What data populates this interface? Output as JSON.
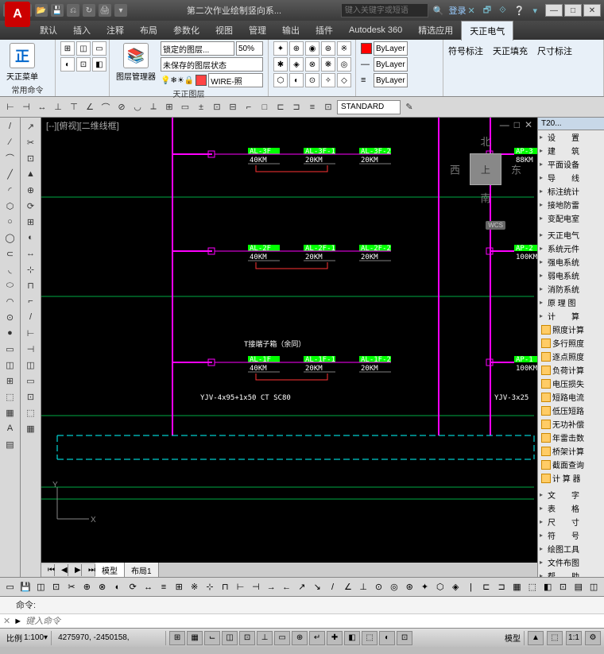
{
  "title": {
    "filename": "第二次作业绘制竖向系...",
    "search_placeholder": "键入关键字或短语",
    "login": "登录"
  },
  "qat": [
    "☰",
    "📄",
    "📂",
    "💾",
    "⎌",
    "↻",
    "🖨",
    "▾"
  ],
  "winbtns": [
    "—",
    "□",
    "✕"
  ],
  "help_icons": [
    "✕",
    "🗗",
    "⟐",
    "❔",
    "▾"
  ],
  "menus": [
    "默认",
    "插入",
    "注释",
    "布局",
    "参数化",
    "视图",
    "管理",
    "输出",
    "插件",
    "Autodesk 360",
    "精选应用",
    "天正电气"
  ],
  "active_menu": 11,
  "ribbon": {
    "panel1": {
      "main": "天正菜单",
      "label": "常用命令",
      "icon": "正"
    },
    "panel2": {
      "main": "图层管理器",
      "combo1": "锁定的图层...",
      "combo2": "50%",
      "state": "未保存的图层状态",
      "wire": "WIRE-照",
      "label": "天正图层"
    },
    "panel3_rows": 3,
    "panel4": {
      "bylayer": "ByLayer",
      "combo2": "ByLayer",
      "combo3": "ByLayer"
    },
    "panel5": [
      "符号标注",
      "天正填充",
      "尺寸标注"
    ]
  },
  "htool": {
    "style": "STANDARD"
  },
  "canvas": {
    "view_label": "[--][俯视][二维线框]",
    "compass": {
      "n": "北",
      "s": "南",
      "e": "东",
      "w": "西",
      "face": "上"
    },
    "wcs_badge": "WCS",
    "floors": [
      {
        "main": "AL-3F",
        "main_v": "40KM",
        "b": "AL-3F-1",
        "bv": "20KM",
        "c": "AL-3F-2",
        "cv": "20KM",
        "right": "AP-3",
        "rv": "88KM"
      },
      {
        "main": "AL-2F",
        "main_v": "40KM",
        "b": "AL-2F-1",
        "bv": "20KM",
        "c": "AL-2F-2",
        "cv": "20KM",
        "right": "AP-2",
        "rv": "100KM"
      },
      {
        "main": "AL-1F",
        "main_v": "40KM",
        "b": "AL-1F-1",
        "bv": "20KM",
        "c": "AL-1F-2",
        "cv": "20KM",
        "right": "AP-1",
        "rv": "100KM",
        "note": "T接端子箱（余同）"
      }
    ],
    "cable1": "YJV-4x95+1x50 CT SC80",
    "cable2": "YJV-3x25",
    "axes": {
      "x": "X",
      "y": "Y"
    },
    "tabs": [
      "模型",
      "布局1"
    ],
    "colors": {
      "riser": "#f0f",
      "green": "#0f0",
      "cyan": "#0ff",
      "grid": "#0a4",
      "red": "#f33"
    }
  },
  "side": {
    "header": "T20...",
    "groups1": [
      "设　　置",
      "建　　筑",
      "平面设备",
      "导　　线",
      "标注统计",
      "接地防雷",
      "变配电室"
    ],
    "groups2": [
      "天正电气",
      "系统元件",
      "强电系统",
      "弱电系统",
      "消防系统",
      "原 理 图",
      "计　　算"
    ],
    "calcs": [
      "照度计算",
      "多行照度",
      "逐点照度",
      "负荷计算",
      "电压损失",
      "短路电流",
      "低压短路",
      "无功补偿",
      "年雷击数",
      "桥架计算"
    ],
    "groups3": [
      "截面查询",
      "计 算 器"
    ],
    "groups4": [
      "文　　字",
      "表　　格",
      "尺　　寸",
      "符　　号",
      "绘图工具",
      "文件布图",
      "帮　　助"
    ]
  },
  "cmd": {
    "history": "命令:",
    "prompt": "►",
    "placeholder": "键入命令"
  },
  "status": {
    "scale_label": "比例",
    "scale": "1:100",
    "coords": "4275970, -2450158, ",
    "btns": [
      "⊞",
      "▦",
      "⌙",
      "◫",
      "⊡",
      "⊥",
      "▭",
      "⊕",
      "↵",
      "✚",
      "◧",
      "⬚",
      "◐",
      "⊡"
    ],
    "model": "模型",
    "annot": "▲",
    "space": "⬚",
    "iso": "1:1",
    "gear": "⚙"
  }
}
